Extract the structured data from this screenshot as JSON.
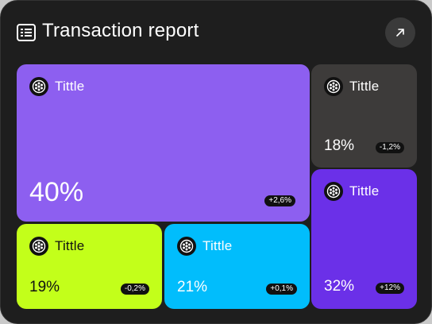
{
  "card": {
    "title": "Transaction report",
    "header_icon": "list-icon",
    "action_icon": "arrow-up-right-icon"
  },
  "tiles": [
    {
      "label": "Tittle",
      "percent": "40%",
      "change": "+2,6%",
      "color": "#8d5ff0",
      "icon": "coin-icon"
    },
    {
      "label": "Tittle",
      "percent": "18%",
      "change": "-1,2%",
      "color": "#3d3b3a",
      "icon": "coin-icon"
    },
    {
      "label": "Tittle",
      "percent": "32%",
      "change": "+12%",
      "color": "#6b30e8",
      "icon": "coin-icon"
    },
    {
      "label": "Tittle",
      "percent": "19%",
      "change": "-0,2%",
      "color": "#c3ff1a",
      "icon": "coin-icon"
    },
    {
      "label": "Tittle",
      "percent": "21%",
      "change": "+0,1%",
      "color": "#01bdfc",
      "icon": "coin-icon"
    }
  ]
}
